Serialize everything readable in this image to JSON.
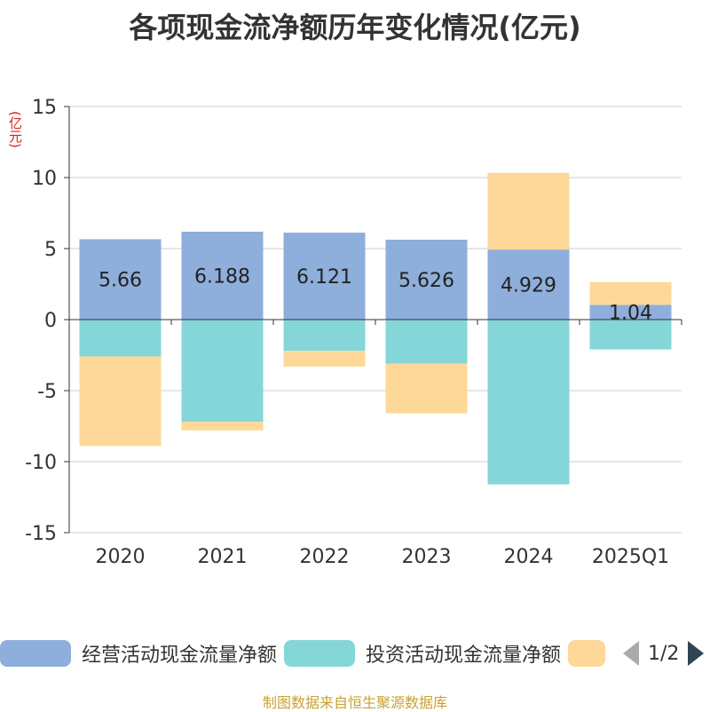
{
  "title": "各项现金流净额历年变化情况(亿元)",
  "unit_label": "(亿元)",
  "source": "制图数据来自恒生聚源数据库",
  "legend": {
    "items": [
      {
        "label": "经营活动现金流量净额",
        "color": "#8eaedb"
      },
      {
        "label": "投资活动现金流量净额",
        "color": "#85d6d8"
      },
      {
        "label": "",
        "color": "#fed898"
      }
    ],
    "page": "1/2"
  },
  "chart_data": {
    "type": "bar",
    "stacked": true,
    "categories": [
      "2020",
      "2021",
      "2022",
      "2023",
      "2024",
      "2025Q1"
    ],
    "series": [
      {
        "name": "经营活动现金流量净额",
        "color": "#8eaedb",
        "values": [
          5.66,
          6.188,
          6.121,
          5.626,
          4.929,
          1.04
        ],
        "labels": [
          "5.66",
          "6.188",
          "6.121",
          "5.626",
          "4.929",
          "1.04"
        ]
      },
      {
        "name": "投资活动现金流量净额",
        "color": "#85d6d8",
        "values": [
          -2.6,
          -7.2,
          -2.2,
          -3.1,
          -11.6,
          -2.1
        ]
      },
      {
        "color": "#fed898",
        "values": [
          -6.3,
          -0.6,
          -1.1,
          -3.5,
          5.4,
          1.6
        ]
      }
    ],
    "ylim": [
      -15,
      15
    ],
    "yticks": [
      15,
      10,
      5,
      0,
      -5,
      -10,
      -15
    ],
    "grid": true,
    "legend_position": "bottom"
  }
}
